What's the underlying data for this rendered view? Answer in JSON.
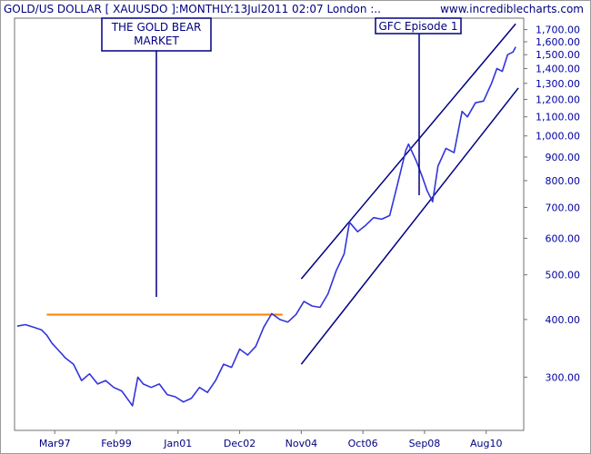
{
  "header": {
    "title": "GOLD/US DOLLAR [ XAUUSDO ]:MONTHLY:13Jul2011 02:07 London :..",
    "site": "www.incrediblecharts.com"
  },
  "chart_data": {
    "type": "line",
    "title": "GOLD/US DOLLAR [ XAUUSDO ]:MONTHLY:13Jul2011 02:07 London :..",
    "xlabel": "",
    "ylabel": "",
    "y_scale": "log",
    "ylim": [
      230,
      1800
    ],
    "xlim": [
      "1995-12",
      "2011-10"
    ],
    "yticks": [
      300,
      400,
      500,
      600,
      700,
      800,
      900,
      1000,
      1100,
      1200,
      1300,
      1400,
      1500,
      1600,
      1700
    ],
    "ytick_labels": [
      "300.00",
      "400.00",
      "500.00",
      "600.00",
      "700.00",
      "800.00",
      "900.00",
      "1,000.00",
      "1,100.00",
      "1,200.00",
      "1,300.00",
      "1,400.00",
      "1,500.00",
      "1,600.00",
      "1,700.00"
    ],
    "xticks": [
      "1997-03",
      "1999-02",
      "2001-01",
      "2002-12",
      "2004-11",
      "2006-10",
      "2008-09",
      "2010-08"
    ],
    "xtick_labels": [
      "Mar97",
      "Feb99",
      "Jan01",
      "Dec02",
      "Nov04",
      "Oct06",
      "Sep08",
      "Aug10"
    ],
    "grid": false,
    "colors": {
      "price": "#3333dd",
      "support_line": "#ff8000",
      "channel": "#000080",
      "annotation": "#000080"
    },
    "series": [
      {
        "x": [
          "1996-01",
          "1996-04",
          "1996-07",
          "1996-10",
          "1996-12",
          "1997-02",
          "1997-04",
          "1997-07",
          "1997-10",
          "1998-01",
          "1998-04",
          "1998-07",
          "1998-10",
          "1999-01",
          "1999-04",
          "1999-07",
          "1999-08",
          "1999-10",
          "1999-12",
          "2000-03",
          "2000-06",
          "2000-09",
          "2000-12",
          "2001-03",
          "2001-06",
          "2001-09",
          "2001-12",
          "2002-03",
          "2002-06",
          "2002-09",
          "2002-12",
          "2003-03",
          "2003-06",
          "2003-09",
          "2003-12",
          "2004-03",
          "2004-06",
          "2004-09",
          "2004-12",
          "2005-03",
          "2005-06",
          "2005-09",
          "2005-12",
          "2006-03",
          "2006-05",
          "2006-08",
          "2006-11",
          "2007-02",
          "2007-05",
          "2007-08",
          "2007-11",
          "2008-02",
          "2008-03",
          "2008-06",
          "2008-08",
          "2008-10",
          "2008-12",
          "2009-02",
          "2009-05",
          "2009-08",
          "2009-11",
          "2010-01",
          "2010-04",
          "2010-07",
          "2010-10",
          "2010-12",
          "2011-02",
          "2011-04",
          "2011-06",
          "2011-07"
        ],
        "y": [
          387,
          390,
          385,
          380,
          370,
          355,
          345,
          330,
          320,
          295,
          305,
          290,
          295,
          285,
          280,
          265,
          260,
          300,
          290,
          285,
          290,
          275,
          272,
          265,
          270,
          285,
          278,
          295,
          320,
          315,
          345,
          335,
          350,
          385,
          412,
          400,
          395,
          410,
          438,
          428,
          425,
          455,
          510,
          555,
          650,
          620,
          640,
          665,
          660,
          672,
          790,
          930,
          960,
          880,
          820,
          760,
          720,
          860,
          940,
          920,
          1130,
          1100,
          1180,
          1190,
          1300,
          1400,
          1380,
          1500,
          1520,
          1560
        ]
      }
    ],
    "annotations": [
      {
        "text": [
          "THE GOLD BEAR",
          "MARKET"
        ]
      },
      {
        "text": [
          "GFC Episode 1"
        ]
      }
    ],
    "lines": {
      "support_level": 410,
      "support_start": "1996-12",
      "support_end": "2004-04",
      "channel_upper": {
        "start": [
          "2004-11",
          490
        ],
        "end": [
          "2011-07",
          1750
        ]
      },
      "channel_lower": {
        "start": [
          "2004-11",
          320
        ],
        "end": [
          "2011-08",
          1270
        ]
      }
    }
  }
}
